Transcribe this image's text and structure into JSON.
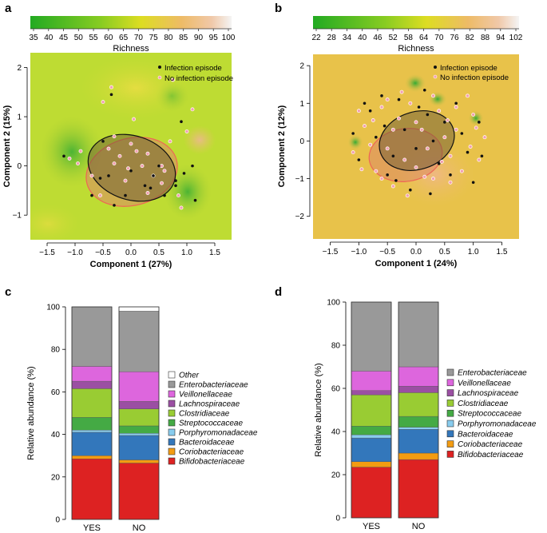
{
  "panels": {
    "a": {
      "letter": "a",
      "colorbar": {
        "title": "Richness",
        "ticks": [
          "35",
          "40",
          "45",
          "50",
          "55",
          "60",
          "65",
          "70",
          "75",
          "80",
          "85",
          "90",
          "95",
          "100"
        ]
      },
      "xlabel": "Component 1 (27%)",
      "ylabel": "Component 2 (15%)",
      "xticks": [
        "−1.5",
        "−1.0",
        "−0.5",
        "0.0",
        "0.5",
        "1.0",
        "1.5"
      ],
      "yticks": [
        "2",
        "1",
        "0",
        "−1"
      ],
      "legend": [
        "Infection episode",
        "No infection episode"
      ]
    },
    "b": {
      "letter": "b",
      "colorbar": {
        "title": "Richness",
        "ticks": [
          "22",
          "28",
          "34",
          "40",
          "46",
          "52",
          "58",
          "64",
          "70",
          "76",
          "82",
          "88",
          "94",
          "102"
        ]
      },
      "xlabel": "Component 1 (24%)",
      "ylabel": "Component 2 (12%)",
      "xticks": [
        "−1.5",
        "−1.0",
        "−0.5",
        "0.0",
        "0.5",
        "1.0",
        "1.5"
      ],
      "yticks": [
        "2",
        "1",
        "0",
        "−1",
        "−2"
      ],
      "legend": [
        "Infection episode",
        "No infection episode"
      ]
    },
    "c": {
      "letter": "c"
    },
    "d": {
      "letter": "d"
    }
  },
  "colors": {
    "infection": "#111111",
    "no_infection": "#f2a0b0",
    "Enterobacteriaceae": "#999999",
    "Veillonellaceae": "#dd66dd",
    "Lachnospiraceae": "#9b4fa3",
    "Clostridiaceae": "#99cc33",
    "Streptococcaceae": "#44aa44",
    "Porphyromonadaceae": "#88ccee",
    "Bacteroidaceae": "#3377bb",
    "Coriobacteriaceae": "#f39c12",
    "Bifidobacteriaceae": "#dd2222",
    "Other": "#ffffff"
  },
  "chart_data": [
    {
      "type": "scatter",
      "panel": "a",
      "title": "",
      "xlabel": "Component 1 (27%)",
      "ylabel": "Component 2 (15%)",
      "xlim": [
        -1.8,
        1.8
      ],
      "ylim": [
        -1.5,
        2.3
      ],
      "colorbar": {
        "title": "Richness",
        "range": [
          35,
          100
        ]
      },
      "series": [
        {
          "name": "Infection episode",
          "points": [
            [
              0.25,
              -0.4
            ],
            [
              -0.1,
              -0.6
            ],
            [
              -0.4,
              -0.2
            ],
            [
              -0.5,
              0.5
            ],
            [
              0.8,
              -0.4
            ],
            [
              1.15,
              -0.7
            ],
            [
              0.5,
              0.0
            ],
            [
              0.35,
              -0.45
            ],
            [
              0.0,
              -0.1
            ],
            [
              -1.2,
              0.2
            ],
            [
              -0.3,
              -0.8
            ],
            [
              -0.7,
              -0.6
            ],
            [
              1.1,
              0.0
            ],
            [
              0.6,
              -0.6
            ],
            [
              0.9,
              0.9
            ],
            [
              0.4,
              -0.2
            ],
            [
              -0.35,
              1.45
            ],
            [
              0.95,
              -0.15
            ],
            [
              -0.55,
              -0.25
            ],
            [
              0.8,
              -0.3
            ]
          ]
        },
        {
          "name": "No infection episode",
          "points": [
            [
              0.05,
              0.95
            ],
            [
              -0.35,
              1.6
            ],
            [
              -0.5,
              1.3
            ],
            [
              1.1,
              1.15
            ],
            [
              -0.3,
              0.05
            ],
            [
              0.2,
              0.0
            ],
            [
              -1.1,
              0.15
            ],
            [
              -0.9,
              0.3
            ],
            [
              0.4,
              -0.2
            ],
            [
              0.7,
              0.5
            ],
            [
              1.0,
              0.7
            ],
            [
              -0.1,
              -0.3
            ],
            [
              -0.4,
              0.35
            ],
            [
              0.6,
              -0.1
            ],
            [
              0.9,
              -0.85
            ],
            [
              0.3,
              -0.55
            ],
            [
              -0.2,
              0.2
            ],
            [
              0.1,
              0.3
            ],
            [
              0.85,
              -0.6
            ],
            [
              -0.3,
              0.6
            ],
            [
              0.75,
              1.75
            ],
            [
              0.55,
              0.0
            ],
            [
              -0.7,
              -0.2
            ],
            [
              -0.95,
              0.05
            ],
            [
              0.3,
              0.25
            ],
            [
              -0.05,
              -0.05
            ],
            [
              0.0,
              0.45
            ],
            [
              -0.55,
              -0.6
            ],
            [
              0.55,
              -0.35
            ]
          ]
        }
      ]
    },
    {
      "type": "scatter",
      "panel": "b",
      "title": "",
      "xlabel": "Component 1 (24%)",
      "ylabel": "Component 2 (12%)",
      "xlim": [
        -1.8,
        1.8
      ],
      "ylim": [
        -2.6,
        2.3
      ],
      "colorbar": {
        "title": "Richness",
        "range": [
          22,
          102
        ]
      },
      "series": [
        {
          "name": "Infection episode",
          "points": [
            [
              -1.0,
              -0.5
            ],
            [
              -0.8,
              0.8
            ],
            [
              -0.6,
              1.2
            ],
            [
              -0.5,
              -0.9
            ],
            [
              -0.3,
              1.1
            ],
            [
              -0.1,
              -1.3
            ],
            [
              0.2,
              0.7
            ],
            [
              0.4,
              -0.6
            ],
            [
              0.7,
              1.0
            ],
            [
              0.9,
              -0.3
            ],
            [
              1.1,
              0.5
            ],
            [
              0.0,
              -0.2
            ],
            [
              -0.2,
              0.3
            ],
            [
              0.3,
              0.0
            ],
            [
              -0.7,
              0.1
            ],
            [
              0.6,
              -0.9
            ],
            [
              1.0,
              -1.1
            ],
            [
              -0.4,
              -0.4
            ],
            [
              0.5,
              0.5
            ],
            [
              -0.9,
              1.0
            ],
            [
              0.15,
              1.35
            ],
            [
              -1.1,
              0.2
            ],
            [
              0.8,
              0.2
            ],
            [
              -0.35,
              -1.05
            ],
            [
              0.05,
              0.9
            ],
            [
              -0.55,
              0.4
            ],
            [
              1.15,
              -0.4
            ],
            [
              0.25,
              -1.4
            ]
          ]
        },
        {
          "name": "No infection episode",
          "points": [
            [
              -1.1,
              -0.3
            ],
            [
              -0.9,
              0.4
            ],
            [
              -0.7,
              -0.8
            ],
            [
              -0.6,
              0.9
            ],
            [
              -0.4,
              -1.2
            ],
            [
              -0.3,
              0.6
            ],
            [
              -0.1,
              1.0
            ],
            [
              0.0,
              -0.7
            ],
            [
              0.1,
              0.3
            ],
            [
              0.3,
              -1.0
            ],
            [
              0.4,
              0.8
            ],
            [
              0.6,
              -0.4
            ],
            [
              0.7,
              0.3
            ],
            [
              0.8,
              -0.8
            ],
            [
              1.0,
              0.7
            ],
            [
              1.1,
              -0.5
            ],
            [
              1.2,
              0.1
            ],
            [
              -0.5,
              -0.2
            ],
            [
              -0.2,
              -0.5
            ],
            [
              0.2,
              -0.2
            ],
            [
              0.5,
              0.1
            ],
            [
              -0.8,
              -0.1
            ],
            [
              -1.0,
              0.8
            ],
            [
              0.9,
              1.2
            ],
            [
              0.0,
              0.5
            ],
            [
              -0.4,
              0.3
            ],
            [
              0.6,
              -1.1
            ],
            [
              -0.6,
              -1.0
            ],
            [
              0.3,
              1.2
            ],
            [
              -0.15,
              -1.45
            ],
            [
              0.45,
              -0.55
            ],
            [
              -0.75,
              0.55
            ],
            [
              0.95,
              -0.15
            ],
            [
              1.05,
              0.35
            ],
            [
              -0.95,
              -0.75
            ],
            [
              0.15,
              -0.95
            ],
            [
              -0.25,
              1.3
            ],
            [
              0.7,
              0.9
            ],
            [
              -0.5,
              1.1
            ],
            [
              0.55,
              0.55
            ]
          ]
        }
      ]
    },
    {
      "type": "bar",
      "panel": "c",
      "title": "",
      "stacked": true,
      "xlabel": "",
      "ylabel": "Relative abundance (%)",
      "ylim": [
        0,
        100
      ],
      "yticks": [
        0,
        20,
        40,
        60,
        80,
        100
      ],
      "categories": [
        "YES",
        "NO"
      ],
      "series": [
        {
          "name": "Bifidobacteriaceae",
          "values": [
            28.5,
            26.5
          ]
        },
        {
          "name": "Coriobacteriaceae",
          "values": [
            1.5,
            1.5
          ]
        },
        {
          "name": "Bacteroidaceae",
          "values": [
            11,
            11.5
          ]
        },
        {
          "name": "Porphyromonadaceae",
          "values": [
            1,
            1
          ]
        },
        {
          "name": "Streptococcaceae",
          "values": [
            6,
            3.5
          ]
        },
        {
          "name": "Clostridiaceae",
          "values": [
            13.5,
            8
          ]
        },
        {
          "name": "Lachnospiraceae",
          "values": [
            3.5,
            3.5
          ]
        },
        {
          "name": "Veillonellaceae",
          "values": [
            7,
            14
          ]
        },
        {
          "name": "Enterobacteriaceae",
          "values": [
            28,
            28.5
          ]
        },
        {
          "name": "Other",
          "values": [
            0,
            2
          ]
        }
      ]
    },
    {
      "type": "bar",
      "panel": "d",
      "title": "",
      "stacked": true,
      "xlabel": "",
      "ylabel": "Relative abundance (%)",
      "ylim": [
        0,
        100
      ],
      "yticks": [
        0,
        20,
        40,
        60,
        80,
        100
      ],
      "categories": [
        "YES",
        "NO"
      ],
      "series": [
        {
          "name": "Bifidobacteriaceae",
          "values": [
            23.5,
            27
          ]
        },
        {
          "name": "Coriobacteriaceae",
          "values": [
            2.5,
            3
          ]
        },
        {
          "name": "Bacteroidaceae",
          "values": [
            11,
            11
          ]
        },
        {
          "name": "Porphyromonadaceae",
          "values": [
            1.5,
            1
          ]
        },
        {
          "name": "Streptococcaceae",
          "values": [
            4,
            5
          ]
        },
        {
          "name": "Clostridiaceae",
          "values": [
            14.5,
            11
          ]
        },
        {
          "name": "Lachnospiraceae",
          "values": [
            2,
            3
          ]
        },
        {
          "name": "Veillonellaceae",
          "values": [
            9,
            9
          ]
        },
        {
          "name": "Enterobacteriaceae",
          "values": [
            32,
            30
          ]
        }
      ]
    }
  ]
}
